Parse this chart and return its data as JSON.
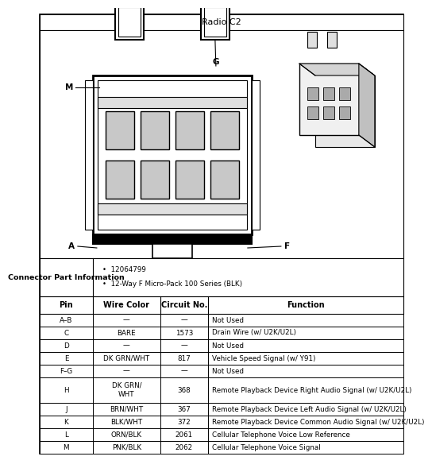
{
  "title": "Radio C2",
  "connector_info_label": "Connector Part Information",
  "connector_info_bullets": [
    "12064799",
    "12-Way F Micro-Pack 100 Series (BLK)"
  ],
  "table_headers": [
    "Pin",
    "Wire Color",
    "Circuit No.",
    "Function"
  ],
  "table_rows": [
    [
      "A–B",
      "—",
      "—",
      "Not Used"
    ],
    [
      "C",
      "BARE",
      "1573",
      "Drain Wire (w/ U2K/U2L)"
    ],
    [
      "D",
      "—",
      "—",
      "Not Used"
    ],
    [
      "E",
      "DK GRN/WHT",
      "817",
      "Vehicle Speed Signal (w/ Y91)"
    ],
    [
      "F–G",
      "—",
      "—",
      "Not Used"
    ],
    [
      "H",
      "DK GRN/\nWHT",
      "368",
      "Remote Playback Device Right Audio Signal (w/ U2K/U2L)"
    ],
    [
      "J",
      "BRN/WHT",
      "367",
      "Remote Playback Device Left Audio Signal (w/ U2K/U2L)"
    ],
    [
      "K",
      "BLK/WHT",
      "372",
      "Remote Playback Device Common Audio Signal (w/ U2K/U2L)"
    ],
    [
      "L",
      "ORN/BLK",
      "2061",
      "Cellular Telephone Voice Low Reference"
    ],
    [
      "M",
      "PNK/BLK",
      "2062",
      "Cellular Telephone Voice Signal"
    ]
  ],
  "bg_color": "#ffffff",
  "border_color": "#000000",
  "title_font_size": 8,
  "label_font_size": 7.5,
  "header_font_size": 7,
  "body_font_size": 6.3,
  "connector_info_font_size": 6.8
}
